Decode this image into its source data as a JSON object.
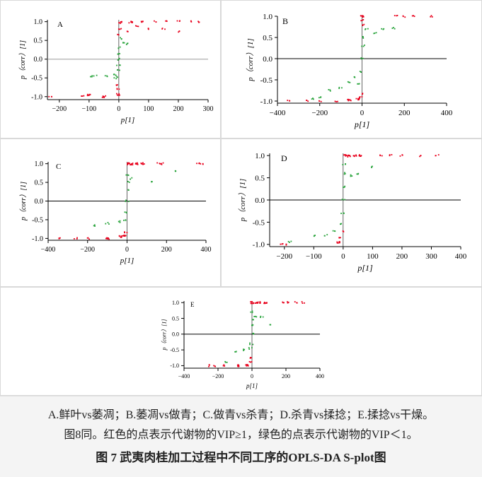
{
  "caption": {
    "line1": "A.鲜叶vs萎凋；B.萎凋vs做青；C.做青vs杀青；D.杀青vs揉捻；E.揉捻vs干燥。",
    "line2": "图8同。红色的点表示代谢物的VIP≥1，绿色的点表示代谢物的VIP＜1。",
    "title": "图 7   武夷肉桂加工过程中不同工序的OPLS-DA S-plot图"
  },
  "colors": {
    "vip_ge1": "#e8001c",
    "vip_lt1": "#27a33a",
    "zero_line": "#000000",
    "zero_line_A": "#999999"
  },
  "chart_data": [
    {
      "panel": "A",
      "type": "scatter",
      "xlabel": "p[1]",
      "ylabel": "p（corr）[1]",
      "xlim": [
        -240,
        300
      ],
      "ylim": [
        -1.08,
        1.05
      ],
      "xticks": [
        -200,
        -100,
        0,
        100,
        200,
        300
      ],
      "yticks": [
        1.0,
        0.5,
        0.0,
        -0.5,
        -1.0
      ],
      "grid": false,
      "legend": "none",
      "series": [
        {
          "vip": ">=1",
          "points": [
            [
              5,
              0.98
            ],
            [
              40,
              0.99
            ],
            [
              80,
              1.0
            ],
            [
              120,
              1.0
            ],
            [
              160,
              1.0
            ],
            [
              200,
              1.0
            ],
            [
              240,
              1.0
            ],
            [
              265,
              1.0
            ],
            [
              60,
              0.88
            ],
            [
              100,
              0.82
            ],
            [
              150,
              0.82
            ],
            [
              200,
              0.74
            ],
            [
              30,
              0.72
            ],
            [
              -2,
              0.65
            ],
            [
              2,
              0.8
            ],
            [
              -6,
              -0.68
            ],
            [
              -4,
              -0.8
            ],
            [
              -3,
              -0.94
            ],
            [
              -50,
              -1.0
            ],
            [
              -120,
              -1.0
            ],
            [
              -230,
              -1.0
            ],
            [
              -100,
              -0.95
            ]
          ]
        },
        {
          "vip": "<1",
          "points": [
            [
              4,
              0.55
            ],
            [
              15,
              0.45
            ],
            [
              25,
              0.4
            ],
            [
              2,
              0.3
            ],
            [
              1,
              0.15
            ],
            [
              0,
              0.0
            ],
            [
              -1,
              -0.15
            ],
            [
              -2,
              -0.3
            ],
            [
              -8,
              -0.45
            ],
            [
              -20,
              -0.4
            ],
            [
              -40,
              -0.45
            ],
            [
              -80,
              -0.45
            ],
            [
              -95,
              -0.45
            ],
            [
              -10,
              -0.5
            ]
          ]
        }
      ]
    },
    {
      "panel": "B",
      "type": "scatter",
      "xlabel": "p[1]",
      "ylabel": "p（corr）[1]",
      "xlim": [
        -400,
        400
      ],
      "ylim": [
        -1.05,
        1.0
      ],
      "xticks": [
        -400,
        -200,
        0,
        200,
        400
      ],
      "yticks": [
        1.0,
        0.5,
        0.0,
        -0.5,
        -1.0
      ],
      "grid": false,
      "legend": "none",
      "series": [
        {
          "vip": ">=1",
          "points": [
            [
              2,
              1.0
            ],
            [
              4,
              0.9
            ],
            [
              5,
              0.8
            ],
            [
              -2,
              -0.82
            ],
            [
              -5,
              -0.9
            ],
            [
              -20,
              -0.95
            ],
            [
              -60,
              -0.97
            ],
            [
              -120,
              -1.0
            ],
            [
              -200,
              -1.0
            ],
            [
              -260,
              -1.0
            ],
            [
              -350,
              -1.0
            ],
            [
              160,
              1.0
            ],
            [
              200,
              1.0
            ],
            [
              240,
              1.0
            ],
            [
              330,
              1.0
            ]
          ]
        },
        {
          "vip": "<1",
          "points": [
            [
              20,
              0.7
            ],
            [
              60,
              0.6
            ],
            [
              100,
              0.7
            ],
            [
              150,
              0.72
            ],
            [
              10,
              0.5
            ],
            [
              5,
              0.3
            ],
            [
              0,
              0.0
            ],
            [
              -5,
              -0.3
            ],
            [
              -30,
              -0.45
            ],
            [
              -60,
              -0.55
            ],
            [
              -100,
              -0.7
            ],
            [
              -150,
              -0.75
            ],
            [
              -20,
              -0.6
            ],
            [
              -200,
              -0.9
            ],
            [
              -230,
              -0.95
            ]
          ]
        }
      ]
    },
    {
      "panel": "C",
      "type": "scatter",
      "xlabel": "p[1]",
      "ylabel": "p（corr）[1]",
      "xlim": [
        -400,
        400
      ],
      "ylim": [
        -1.05,
        1.05
      ],
      "xticks": [
        -400,
        -200,
        0,
        200,
        400
      ],
      "yticks": [
        1.0,
        0.5,
        0.0,
        -0.5,
        -1.0
      ],
      "grid": false,
      "legend": "none",
      "series": [
        {
          "vip": ">=1",
          "points": [
            [
              5,
              1.0
            ],
            [
              20,
              0.99
            ],
            [
              50,
              1.0
            ],
            [
              80,
              1.0
            ],
            [
              160,
              1.0
            ],
            [
              180,
              1.0
            ],
            [
              360,
              1.0
            ],
            [
              380,
              1.0
            ],
            [
              -5,
              -0.85
            ],
            [
              -15,
              -0.92
            ],
            [
              -30,
              -0.95
            ],
            [
              -100,
              -1.0
            ],
            [
              -200,
              -1.0
            ],
            [
              -340,
              -1.0
            ],
            [
              -260,
              -1.0
            ]
          ]
        },
        {
          "vip": "<1",
          "points": [
            [
              4,
              0.7
            ],
            [
              10,
              0.5
            ],
            [
              2,
              0.3
            ],
            [
              0,
              0.0
            ],
            [
              -2,
              -0.3
            ],
            [
              -8,
              -0.5
            ],
            [
              -40,
              -0.55
            ],
            [
              -100,
              -0.6
            ],
            [
              -160,
              -0.65
            ],
            [
              20,
              0.6
            ],
            [
              120,
              0.5
            ],
            [
              240,
              0.8
            ]
          ]
        }
      ]
    },
    {
      "panel": "D",
      "type": "scatter",
      "xlabel": "p[1]",
      "ylabel": "p（corr）[1]",
      "xlim": [
        -250,
        400
      ],
      "ylim": [
        -1.05,
        1.05
      ],
      "xticks": [
        -200,
        -100,
        0,
        100,
        200,
        300,
        400
      ],
      "yticks": [
        1.0,
        0.5,
        0.0,
        -0.5,
        -1.0
      ],
      "grid": false,
      "legend": "none",
      "series": [
        {
          "vip": ">=1",
          "points": [
            [
              5,
              1.0
            ],
            [
              20,
              0.99
            ],
            [
              40,
              1.0
            ],
            [
              60,
              1.0
            ],
            [
              130,
              1.0
            ],
            [
              160,
              1.0
            ],
            [
              200,
              1.0
            ],
            [
              260,
              1.0
            ],
            [
              320,
              1.0
            ],
            [
              -3,
              -0.7
            ],
            [
              -8,
              -0.85
            ],
            [
              -15,
              -0.95
            ],
            [
              -210,
              -1.0
            ],
            [
              -190,
              -1.0
            ]
          ]
        },
        {
          "vip": "<1",
          "points": [
            [
              3,
              0.8
            ],
            [
              8,
              0.6
            ],
            [
              2,
              0.3
            ],
            [
              0,
              0.0
            ],
            [
              -2,
              -0.3
            ],
            [
              -8,
              -0.55
            ],
            [
              -30,
              -0.7
            ],
            [
              -60,
              -0.8
            ],
            [
              -100,
              -0.8
            ],
            [
              25,
              0.55
            ],
            [
              50,
              0.6
            ],
            [
              100,
              0.75
            ],
            [
              -180,
              -0.95
            ]
          ]
        }
      ]
    },
    {
      "panel": "E",
      "type": "scatter",
      "xlabel": "p[1]",
      "ylabel": "p（corr）[1]",
      "xlim": [
        -400,
        400
      ],
      "ylim": [
        -1.08,
        1.05
      ],
      "xticks": [
        -400,
        -200,
        0,
        200,
        400
      ],
      "yticks": [
        1.0,
        0.5,
        0.0,
        -0.5,
        -1.0
      ],
      "grid": false,
      "legend": "none",
      "series": [
        {
          "vip": ">=1",
          "points": [
            [
              2,
              1.0
            ],
            [
              15,
              0.99
            ],
            [
              40,
              1.0
            ],
            [
              80,
              1.0
            ],
            [
              180,
              1.0
            ],
            [
              210,
              1.0
            ],
            [
              260,
              1.0
            ],
            [
              300,
              1.0
            ],
            [
              -3,
              -0.75
            ],
            [
              -10,
              -0.9
            ],
            [
              -30,
              -0.98
            ],
            [
              -80,
              -1.0
            ],
            [
              -160,
              -1.0
            ],
            [
              -260,
              -1.0
            ],
            [
              -220,
              -1.0
            ]
          ]
        },
        {
          "vip": "<1",
          "points": [
            [
              3,
              0.7
            ],
            [
              8,
              0.45
            ],
            [
              2,
              0.3
            ],
            [
              0,
              0.0
            ],
            [
              -3,
              -0.3
            ],
            [
              -10,
              -0.45
            ],
            [
              -40,
              -0.5
            ],
            [
              -90,
              -0.55
            ],
            [
              -150,
              -0.9
            ],
            [
              20,
              0.55
            ],
            [
              60,
              0.55
            ],
            [
              100,
              0.3
            ]
          ]
        }
      ]
    }
  ]
}
